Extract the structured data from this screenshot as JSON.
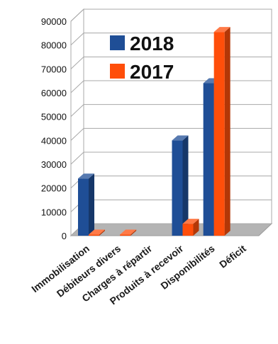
{
  "chart_data": {
    "type": "bar",
    "title": "",
    "xlabel": "",
    "ylabel": "",
    "ylim": [
      0,
      90000
    ],
    "yticks": [
      0,
      10000,
      20000,
      30000,
      40000,
      50000,
      60000,
      70000,
      80000,
      90000
    ],
    "grid": true,
    "three_d": true,
    "legend_position": "top-center",
    "categories": [
      "Immobilisation",
      "Débiteurs divers",
      "Charges à répartir",
      "Produits à recevoir",
      "Disponibilités",
      "Déficit"
    ],
    "series": [
      {
        "name": "2018",
        "color": "#1f4e96",
        "values": [
          24000,
          0,
          0,
          40000,
          64000,
          0
        ]
      },
      {
        "name": "2017",
        "color": "#ff4e0a",
        "values": [
          500,
          500,
          0,
          5000,
          85500,
          0
        ]
      }
    ]
  }
}
